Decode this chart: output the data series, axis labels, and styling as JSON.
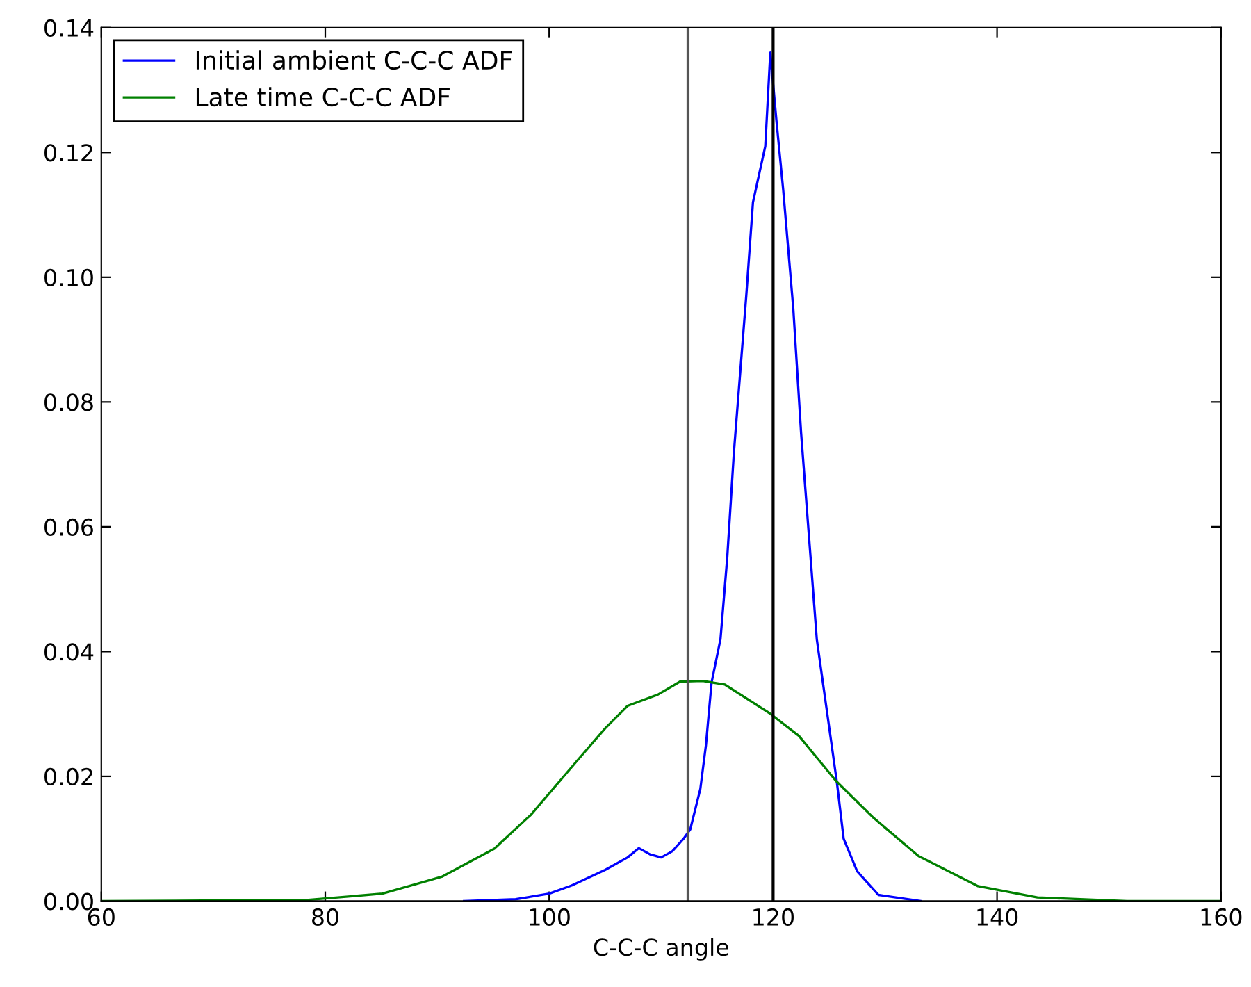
{
  "chart_data": {
    "type": "line",
    "xlabel": "C-C-C angle",
    "xlim": [
      60,
      160
    ],
    "xticks": [
      60,
      80,
      100,
      120,
      140,
      160
    ],
    "ylim": [
      0,
      0.14
    ],
    "yticks": [
      {
        "value": 0,
        "label": "0.00"
      },
      {
        "value": 0.02,
        "label": "0.02"
      },
      {
        "value": 0.04,
        "label": "0.04"
      },
      {
        "value": 0.06,
        "label": "0.06"
      },
      {
        "value": 0.08,
        "label": "0.08"
      },
      {
        "value": 0.1,
        "label": "0.10"
      },
      {
        "value": 0.12,
        "label": "0.12"
      },
      {
        "value": 0.14,
        "label": "0.14"
      }
    ],
    "grid": false,
    "legend": "top left",
    "series": [
      {
        "name": "Initial ambient C-C-C ADF",
        "color": "#0000ff",
        "x": [
          92.4,
          97,
          100,
          102,
          105,
          107,
          108,
          109,
          110,
          111,
          112,
          112.6,
          113.5,
          114,
          114.5,
          115.3,
          115.9,
          116.5,
          117.6,
          118.2,
          119.3,
          119.75,
          120.3,
          120.9,
          121.8,
          122.5,
          123.9,
          125.7,
          126.3,
          127.5,
          129.4,
          133.2
        ],
        "values": [
          0,
          0.0003,
          0.0012,
          0.0025,
          0.005,
          0.007,
          0.0085,
          0.0075,
          0.007,
          0.008,
          0.01,
          0.0115,
          0.018,
          0.025,
          0.035,
          0.042,
          0.055,
          0.072,
          0.097,
          0.112,
          0.121,
          0.136,
          0.125,
          0.114,
          0.095,
          0.075,
          0.042,
          0.019,
          0.01,
          0.0048,
          0.001,
          0
        ]
      },
      {
        "name": "Late time C-C-C ADF",
        "color": "#008000",
        "x": [
          60,
          78.5,
          85.1,
          90.4,
          95.1,
          98.4,
          102.4,
          105,
          107,
          109.7,
          111.7,
          113.7,
          115.7,
          119.7,
          122.3,
          125.6,
          129,
          133,
          138.3,
          143.6,
          151.6,
          160
        ],
        "values": [
          0,
          0.0002,
          0.0012,
          0.0039,
          0.0084,
          0.0139,
          0.0223,
          0.0277,
          0.0313,
          0.0331,
          0.0352,
          0.0353,
          0.0347,
          0.0301,
          0.0265,
          0.0193,
          0.0133,
          0.0072,
          0.0024,
          0.0006,
          0,
          0
        ]
      }
    ],
    "ref_lines": [
      {
        "axis": "x",
        "value": 112.4,
        "color": "#555555"
      },
      {
        "axis": "x",
        "value": 120,
        "color": "#000000"
      }
    ]
  }
}
